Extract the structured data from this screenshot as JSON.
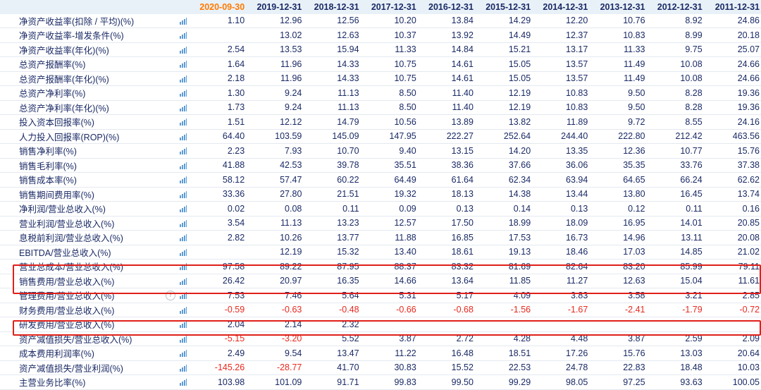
{
  "columns": [
    "2020-09-30",
    "2019-12-31",
    "2018-12-31",
    "2017-12-31",
    "2016-12-31",
    "2015-12-31",
    "2014-12-31",
    "2013-12-31",
    "2012-12-31",
    "2011-12-31"
  ],
  "rows": [
    {
      "label": "净资产收益率(扣除 / 平均)(%)",
      "values": [
        "1.10",
        "12.96",
        "12.56",
        "10.20",
        "13.84",
        "14.29",
        "12.20",
        "10.76",
        "8.92",
        "24.86"
      ]
    },
    {
      "label": "净资产收益率-增发条件(%)",
      "values": [
        "",
        "13.02",
        "12.63",
        "10.37",
        "13.92",
        "14.49",
        "12.37",
        "10.83",
        "8.99",
        "20.18"
      ]
    },
    {
      "label": "净资产收益率(年化)(%)",
      "values": [
        "2.54",
        "13.53",
        "15.94",
        "11.33",
        "14.84",
        "15.21",
        "13.17",
        "11.33",
        "9.75",
        "25.07"
      ]
    },
    {
      "label": "总资产报酬率(%)",
      "values": [
        "1.64",
        "11.96",
        "14.33",
        "10.75",
        "14.61",
        "15.05",
        "13.57",
        "11.49",
        "10.08",
        "24.66"
      ]
    },
    {
      "label": "总资产报酬率(年化)(%)",
      "values": [
        "2.18",
        "11.96",
        "14.33",
        "10.75",
        "14.61",
        "15.05",
        "13.57",
        "11.49",
        "10.08",
        "24.66"
      ]
    },
    {
      "label": "总资产净利率(%)",
      "values": [
        "1.30",
        "9.24",
        "11.13",
        "8.50",
        "11.40",
        "12.19",
        "10.83",
        "9.50",
        "8.28",
        "19.36"
      ]
    },
    {
      "label": "总资产净利率(年化)(%)",
      "values": [
        "1.73",
        "9.24",
        "11.13",
        "8.50",
        "11.40",
        "12.19",
        "10.83",
        "9.50",
        "8.28",
        "19.36"
      ]
    },
    {
      "label": "投入资本回报率(%)",
      "values": [
        "1.51",
        "12.12",
        "14.79",
        "10.56",
        "13.89",
        "13.82",
        "11.89",
        "9.72",
        "8.55",
        "24.16"
      ]
    },
    {
      "label": "人力投入回报率(ROP)(%)",
      "values": [
        "64.40",
        "103.59",
        "145.09",
        "147.95",
        "222.27",
        "252.64",
        "244.40",
        "222.80",
        "212.42",
        "463.56"
      ]
    },
    {
      "label": "销售净利率(%)",
      "values": [
        "2.23",
        "7.93",
        "10.70",
        "9.40",
        "13.15",
        "14.20",
        "13.35",
        "12.36",
        "10.77",
        "15.76"
      ]
    },
    {
      "label": "销售毛利率(%)",
      "values": [
        "41.88",
        "42.53",
        "39.78",
        "35.51",
        "38.36",
        "37.66",
        "36.06",
        "35.35",
        "33.76",
        "37.38"
      ]
    },
    {
      "label": "销售成本率(%)",
      "values": [
        "58.12",
        "57.47",
        "60.22",
        "64.49",
        "61.64",
        "62.34",
        "63.94",
        "64.65",
        "66.24",
        "62.62"
      ]
    },
    {
      "label": "销售期间费用率(%)",
      "values": [
        "33.36",
        "27.80",
        "21.51",
        "19.32",
        "18.13",
        "14.38",
        "13.44",
        "13.80",
        "16.45",
        "13.74"
      ]
    },
    {
      "label": "净利润/营业总收入(%)",
      "values": [
        "0.02",
        "0.08",
        "0.11",
        "0.09",
        "0.13",
        "0.14",
        "0.13",
        "0.12",
        "0.11",
        "0.16"
      ]
    },
    {
      "label": "营业利润/营业总收入(%)",
      "values": [
        "3.54",
        "11.13",
        "13.23",
        "12.57",
        "17.50",
        "18.99",
        "18.09",
        "16.95",
        "14.01",
        "20.85"
      ]
    },
    {
      "label": "息税前利润/营业总收入(%)",
      "values": [
        "2.82",
        "10.26",
        "13.77",
        "11.88",
        "16.85",
        "17.53",
        "16.73",
        "14.96",
        "13.11",
        "20.08"
      ]
    },
    {
      "label": "EBITDA/营业总收入(%)",
      "values": [
        "",
        "12.19",
        "15.32",
        "13.40",
        "18.61",
        "19.13",
        "18.46",
        "17.03",
        "14.85",
        "21.02"
      ]
    },
    {
      "label": "营业总成本/营业总收入(%)",
      "values": [
        "97.58",
        "89.22",
        "87.95",
        "88.37",
        "83.32",
        "81.69",
        "82.64",
        "83.20",
        "85.99",
        "79.11"
      ]
    },
    {
      "label": "销售费用/营业总收入(%)",
      "values": [
        "26.42",
        "20.97",
        "16.35",
        "14.66",
        "13.64",
        "11.85",
        "11.27",
        "12.63",
        "15.04",
        "11.61"
      ]
    },
    {
      "label": "管理费用/营业总收入(%)",
      "values": [
        "7.53",
        "7.46",
        "5.64",
        "5.31",
        "5.17",
        "4.09",
        "3.83",
        "3.58",
        "3.21",
        "2.85"
      ],
      "help": "?"
    },
    {
      "label": "财务费用/营业总收入(%)",
      "values": [
        "-0.59",
        "-0.63",
        "-0.48",
        "-0.66",
        "-0.68",
        "-1.56",
        "-1.67",
        "-2.41",
        "-1.79",
        "-0.72"
      ]
    },
    {
      "label": "研发费用/营业总收入(%)",
      "values": [
        "2.04",
        "2.14",
        "2.32",
        "",
        "",
        "",
        "",
        "",
        "",
        ""
      ]
    },
    {
      "label": "资产减值损失/营业总收入(%)",
      "values": [
        "-5.15",
        "-3.20",
        "5.52",
        "3.87",
        "2.72",
        "4.28",
        "4.48",
        "3.87",
        "2.59",
        "2.09"
      ]
    },
    {
      "label": "成本费用利润率(%)",
      "values": [
        "2.49",
        "9.54",
        "13.47",
        "11.22",
        "16.48",
        "18.51",
        "17.26",
        "15.76",
        "13.03",
        "20.64"
      ]
    },
    {
      "label": "资产减值损失/营业利润(%)",
      "values": [
        "-145.26",
        "-28.77",
        "41.70",
        "30.83",
        "15.52",
        "22.53",
        "24.78",
        "22.83",
        "18.48",
        "10.03"
      ]
    },
    {
      "label": "主营业务比率(%)",
      "values": [
        "103.98",
        "101.09",
        "91.71",
        "99.83",
        "99.50",
        "99.29",
        "98.05",
        "97.25",
        "93.63",
        "100.05"
      ]
    }
  ],
  "icons": {
    "row_chart": "bar-chart-icon",
    "help": "help-circle-icon"
  },
  "colors": {
    "header_bg": "#e9f1f8",
    "text": "#1a2a66",
    "highlight": "#e0201a",
    "latest": "#ff7a00",
    "negative": "#e8281e"
  }
}
